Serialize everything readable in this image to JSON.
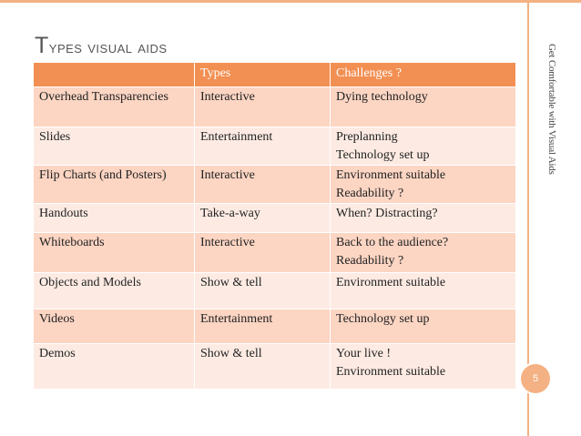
{
  "slide": {
    "title_first_letter": "T",
    "title_rest": "ypes visual aids",
    "side_text": "Get Comfortable with Visual Aids",
    "page_number": "5"
  },
  "table": {
    "headers": [
      "",
      "Types",
      "Challenges ?"
    ],
    "rows": [
      {
        "item": "Overhead Transparencies",
        "type": "Interactive",
        "challenges": [
          "Dying technology"
        ]
      },
      {
        "item": "Slides",
        "type": "Entertainment",
        "challenges": [
          "Preplanning",
          "Technology set up"
        ]
      },
      {
        "item": "Flip Charts (and Posters)",
        "type": "Interactive",
        "challenges": [
          "Environment suitable",
          "Readability ?"
        ]
      },
      {
        "item": "Handouts",
        "type": "Take-a-way",
        "challenges": [
          "When? Distracting?"
        ]
      },
      {
        "item": "Whiteboards",
        "type": "Interactive",
        "challenges": [
          "Back to the audience?",
          "Readability ?"
        ]
      },
      {
        "item": "Objects and Models",
        "type": "Show & tell",
        "challenges": [
          "Environment suitable"
        ]
      },
      {
        "item": "Videos",
        "type": "Entertainment",
        "challenges": [
          "Technology set up"
        ]
      },
      {
        "item": "Demos",
        "type": "Show & tell",
        "challenges": [
          "Your live !",
          "Environment suitable"
        ]
      }
    ]
  },
  "colors": {
    "accent": "#f4b183",
    "header_fill": "#f28f52",
    "row_dark": "#fcd5c3",
    "row_light": "#fdebe3"
  }
}
